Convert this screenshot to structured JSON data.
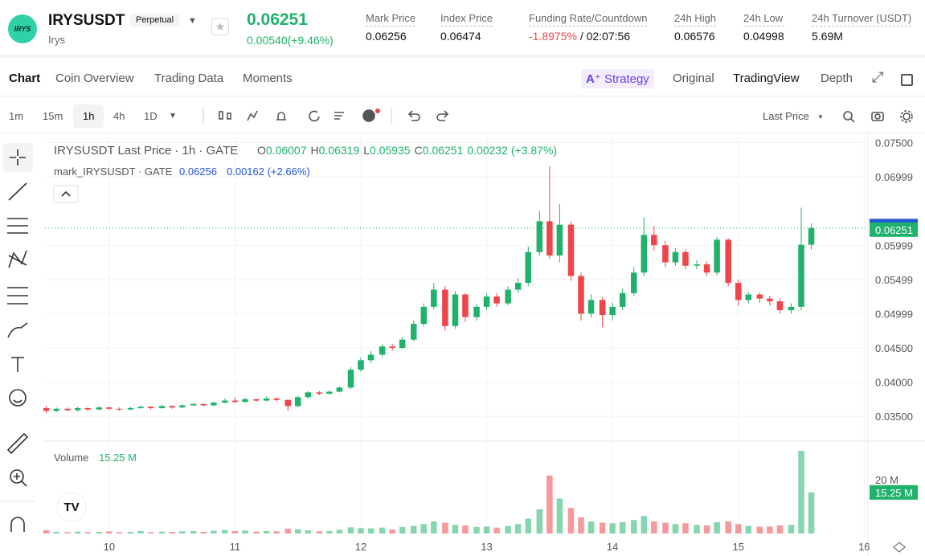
{
  "header": {
    "logo": "IRYS",
    "symbol": "IRYSUSDT",
    "badge": "Perpetual",
    "name": "Irys",
    "price": "0.06251",
    "change": "0.00540(+9.46%)",
    "stats": [
      {
        "label": "Mark Price",
        "value": "0.06256"
      },
      {
        "label": "Index Price",
        "value": "0.06474"
      },
      {
        "label": "Funding Rate/Countdown",
        "value": "-1.8975%",
        "extra": "/ 02:07:56"
      },
      {
        "label": "24h High",
        "value": "0.06576"
      },
      {
        "label": "24h Low",
        "value": "0.04998"
      },
      {
        "label": "24h Turnover (USDT)",
        "value": "5.69M"
      }
    ]
  },
  "tabs": [
    "Chart",
    "Coin Overview",
    "Trading Data",
    "Moments"
  ],
  "right_tabs": [
    "Strategy",
    "Original",
    "TradingView",
    "Depth"
  ],
  "intervals": [
    "1m",
    "15m",
    "1h",
    "4h",
    "1D"
  ],
  "price_type": "Last Price",
  "chart_data": {
    "type": "candlestick",
    "title": "IRYSUSDT Last Price · 1h · GATE",
    "ohlc_labels": [
      "O",
      "H",
      "L",
      "C"
    ],
    "change": "0.00232 (+3.87%)",
    "mark_title": "mark_IRYSUSDT · GATE",
    "mark_value": "0.06256",
    "mark_change": "0.00162 (+2.66%)",
    "mark_price": 0.06256,
    "volume_title": "Volume",
    "volume_last_label": "15.25 M",
    "up_color": "#20b26c",
    "down_color": "#ef454a",
    "mark_color": "#2455d6",
    "xlim": [
      9.49,
      16.03
    ],
    "xticks": [
      10,
      11,
      12,
      13,
      14,
      15,
      16
    ],
    "ylim": [
      0.0315,
      0.0761
    ],
    "yticks": [
      {
        "value": 0.035,
        "label": "0.03500"
      },
      {
        "value": 0.04,
        "label": "0.04000"
      },
      {
        "value": 0.045,
        "label": "0.04500"
      },
      {
        "value": 0.04999,
        "label": "0.04999"
      },
      {
        "value": 0.05499,
        "label": "0.05499"
      },
      {
        "value": 0.05999,
        "label": "0.05999"
      },
      {
        "value": 0.06999,
        "label": "0.06999"
      },
      {
        "value": 0.075,
        "label": "0.07500"
      }
    ],
    "vlim": [
      0,
      33.4
    ],
    "vticks": [
      {
        "value": 20,
        "label": "20 M"
      }
    ],
    "x": [
      9.5,
      9.58,
      9.67,
      9.75,
      9.83,
      9.92,
      10,
      10.08,
      10.17,
      10.25,
      10.33,
      10.42,
      10.5,
      10.58,
      10.67,
      10.75,
      10.83,
      10.92,
      11,
      11.08,
      11.17,
      11.25,
      11.33,
      11.42,
      11.5,
      11.58,
      11.67,
      11.75,
      11.83,
      11.92,
      12,
      12.08,
      12.17,
      12.25,
      12.33,
      12.42,
      12.5,
      12.58,
      12.67,
      12.75,
      12.83,
      12.92,
      13,
      13.08,
      13.17,
      13.25,
      13.33,
      13.42,
      13.5,
      13.58,
      13.67,
      13.75,
      13.83,
      13.92,
      14,
      14.08,
      14.17,
      14.25,
      14.33,
      14.42,
      14.5,
      14.58,
      14.67,
      14.75,
      14.83,
      14.92,
      15,
      15.08,
      15.17,
      15.25,
      15.33,
      15.42,
      15.5,
      15.58
    ],
    "open": [
      0.0362,
      0.0358,
      0.0361,
      0.0359,
      0.0362,
      0.036,
      0.0363,
      0.0361,
      0.036,
      0.0362,
      0.0364,
      0.0362,
      0.0365,
      0.0363,
      0.0366,
      0.0368,
      0.0366,
      0.037,
      0.0373,
      0.0371,
      0.0375,
      0.0373,
      0.0376,
      0.0374,
      0.0365,
      0.0378,
      0.0385,
      0.0383,
      0.0386,
      0.0392,
      0.0418,
      0.0432,
      0.044,
      0.0452,
      0.045,
      0.0462,
      0.0485,
      0.051,
      0.0535,
      0.0482,
      0.0528,
      0.0495,
      0.051,
      0.0525,
      0.0515,
      0.0535,
      0.0545,
      0.059,
      0.0635,
      0.0585,
      0.063,
      0.0555,
      0.05,
      0.052,
      0.0498,
      0.051,
      0.053,
      0.056,
      0.0615,
      0.06,
      0.0575,
      0.059,
      0.057,
      0.0572,
      0.056,
      0.0608,
      0.0545,
      0.052,
      0.0528,
      0.0522,
      0.0518,
      0.0505,
      0.051,
      0.06007
    ],
    "high": [
      0.0365,
      0.0363,
      0.0363,
      0.0364,
      0.0363,
      0.0365,
      0.0364,
      0.0363,
      0.0364,
      0.0366,
      0.0365,
      0.0367,
      0.0366,
      0.0368,
      0.037,
      0.0369,
      0.0372,
      0.0376,
      0.0378,
      0.0377,
      0.0376,
      0.0379,
      0.0378,
      0.0375,
      0.038,
      0.0387,
      0.0387,
      0.0388,
      0.0394,
      0.0422,
      0.0436,
      0.0445,
      0.0455,
      0.0456,
      0.0466,
      0.049,
      0.0515,
      0.0545,
      0.054,
      0.0533,
      0.053,
      0.0514,
      0.053,
      0.053,
      0.054,
      0.0552,
      0.0598,
      0.065,
      0.0715,
      0.066,
      0.0635,
      0.056,
      0.0528,
      0.0524,
      0.0516,
      0.0537,
      0.0568,
      0.064,
      0.0628,
      0.0606,
      0.0596,
      0.0594,
      0.0578,
      0.0576,
      0.0612,
      0.061,
      0.055,
      0.0532,
      0.0531,
      0.0526,
      0.0522,
      0.0515,
      0.0655,
      0.06319
    ],
    "low": [
      0.0355,
      0.0356,
      0.0357,
      0.0357,
      0.0358,
      0.0359,
      0.0359,
      0.0358,
      0.0359,
      0.0361,
      0.036,
      0.0361,
      0.0361,
      0.0362,
      0.0365,
      0.0364,
      0.0365,
      0.0369,
      0.0369,
      0.037,
      0.0371,
      0.0372,
      0.0372,
      0.0358,
      0.0363,
      0.0376,
      0.0381,
      0.0382,
      0.0385,
      0.039,
      0.0415,
      0.0428,
      0.0437,
      0.0446,
      0.0448,
      0.046,
      0.0482,
      0.0506,
      0.0475,
      0.0478,
      0.0488,
      0.049,
      0.0506,
      0.051,
      0.0512,
      0.053,
      0.054,
      0.0585,
      0.058,
      0.0575,
      0.0548,
      0.049,
      0.0494,
      0.048,
      0.049,
      0.0505,
      0.0526,
      0.0555,
      0.0592,
      0.0568,
      0.057,
      0.0565,
      0.0565,
      0.0555,
      0.0556,
      0.054,
      0.0512,
      0.0515,
      0.0516,
      0.0512,
      0.05,
      0.05,
      0.0505,
      0.05935
    ],
    "close": [
      0.0358,
      0.0361,
      0.0359,
      0.0362,
      0.036,
      0.0363,
      0.0361,
      0.036,
      0.0362,
      0.0364,
      0.0362,
      0.0365,
      0.0363,
      0.0366,
      0.0368,
      0.0366,
      0.037,
      0.0373,
      0.0371,
      0.0375,
      0.0373,
      0.0376,
      0.0374,
      0.0365,
      0.0378,
      0.0385,
      0.0383,
      0.0386,
      0.0392,
      0.0418,
      0.0432,
      0.044,
      0.0452,
      0.045,
      0.0462,
      0.0485,
      0.051,
      0.0535,
      0.0482,
      0.0528,
      0.0495,
      0.051,
      0.0525,
      0.0515,
      0.0535,
      0.0545,
      0.059,
      0.0635,
      0.0585,
      0.063,
      0.0555,
      0.05,
      0.052,
      0.0498,
      0.051,
      0.053,
      0.056,
      0.0615,
      0.06,
      0.0575,
      0.059,
      0.057,
      0.0572,
      0.056,
      0.0608,
      0.0545,
      0.052,
      0.0528,
      0.0522,
      0.0518,
      0.0505,
      0.051,
      0.06007,
      0.06251
    ],
    "volume": [
      1.2,
      0.6,
      0.5,
      0.7,
      0.5,
      0.6,
      0.8,
      0.5,
      0.6,
      0.9,
      0.5,
      0.7,
      0.6,
      0.8,
      0.9,
      0.6,
      1.0,
      1.3,
      0.9,
      1.1,
      0.7,
      0.9,
      0.8,
      1.8,
      1.6,
      1.2,
      0.8,
      0.9,
      1.4,
      2.3,
      2.0,
      1.9,
      2.2,
      1.5,
      2.4,
      2.8,
      3.5,
      4.5,
      4.0,
      3.2,
      3.0,
      2.4,
      2.6,
      2.2,
      2.8,
      3.5,
      5.5,
      9.0,
      21.5,
      13.0,
      9.5,
      6.0,
      4.5,
      4.0,
      3.8,
      4.2,
      5.0,
      6.5,
      4.5,
      4.0,
      3.5,
      3.8,
      3.2,
      3.0,
      4.2,
      4.5,
      3.5,
      2.8,
      2.5,
      2.6,
      3.0,
      3.2,
      30.7,
      15.25
    ]
  }
}
